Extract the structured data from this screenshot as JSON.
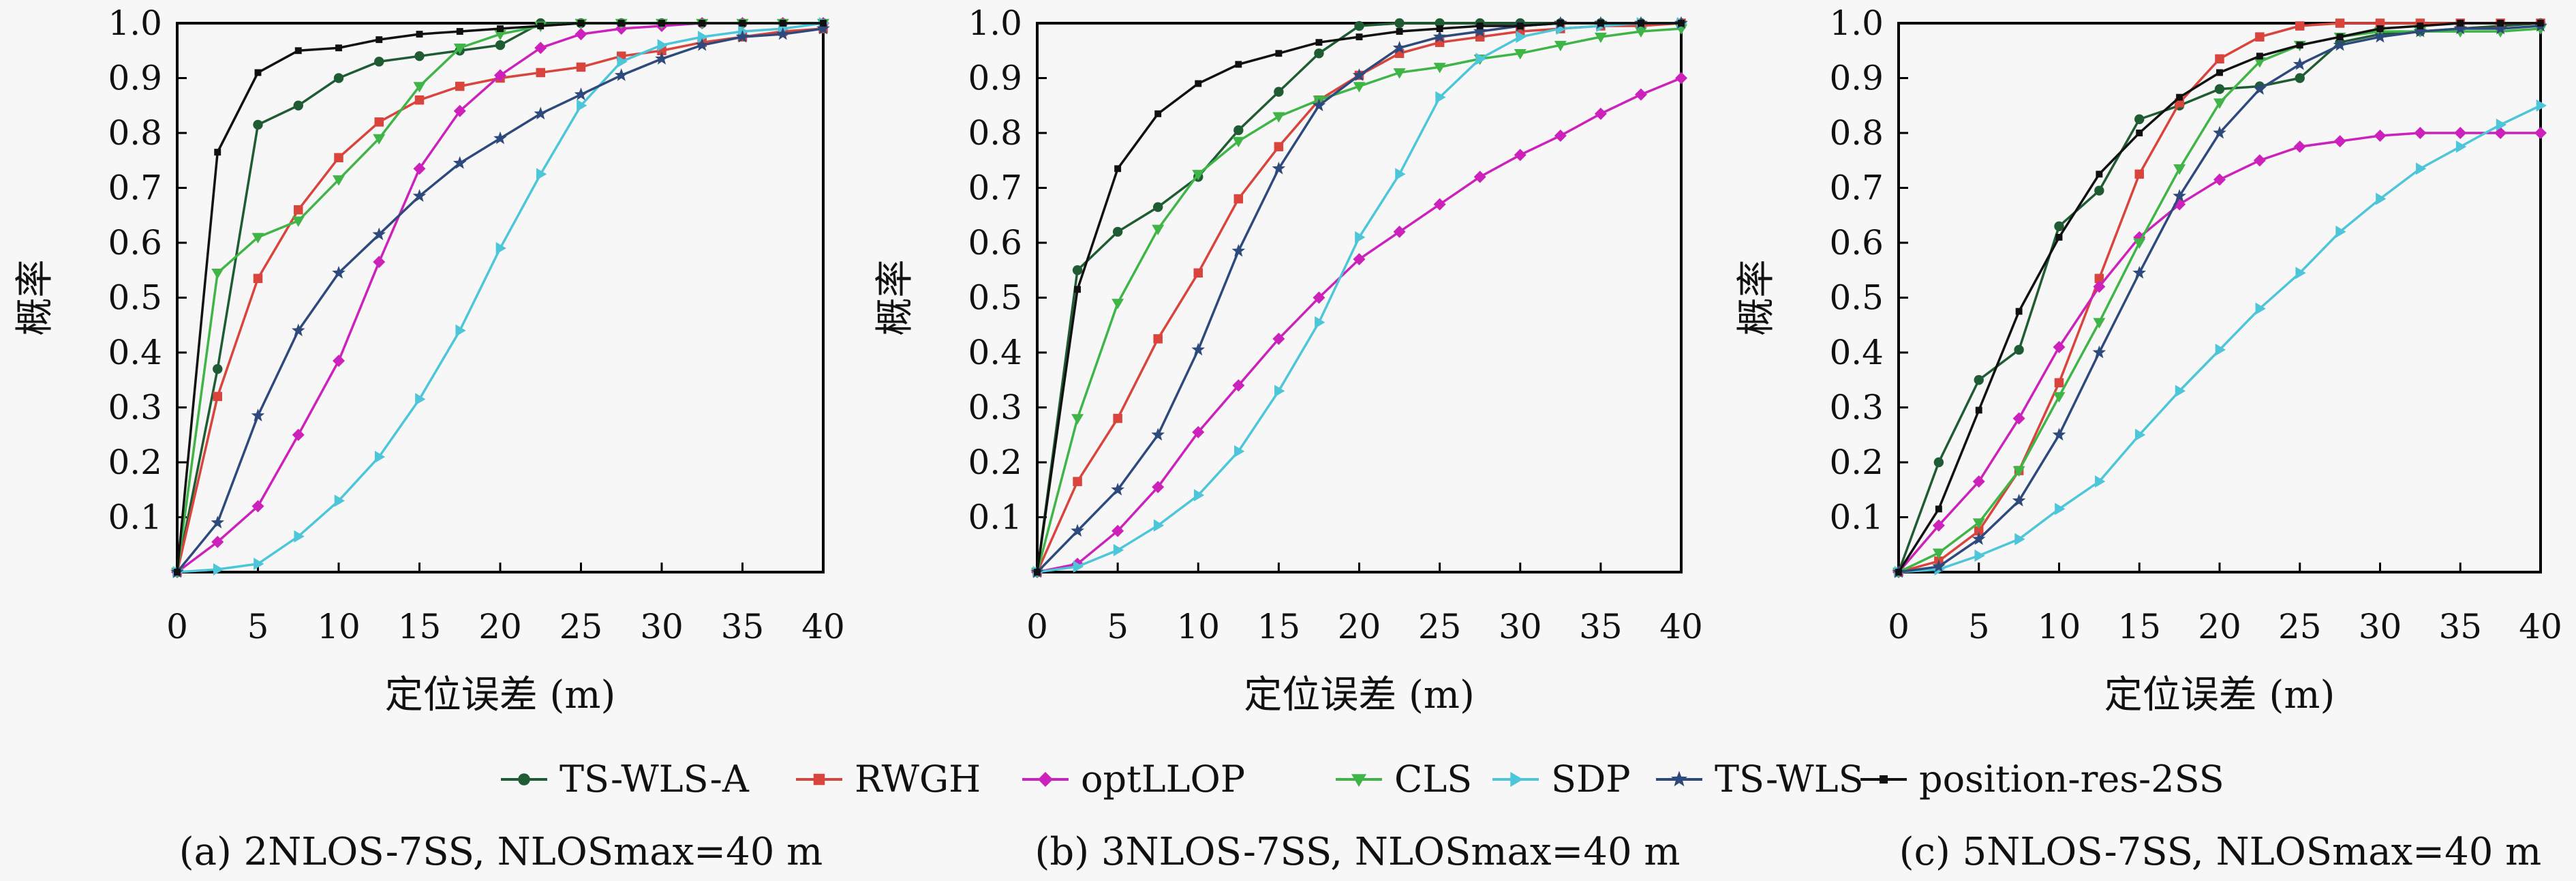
{
  "legend": [
    {
      "name": "TS-WLS-A",
      "color": "#1f5c33",
      "marker": "circle"
    },
    {
      "name": "RWGH",
      "color": "#d9443c",
      "marker": "square"
    },
    {
      "name": "optLLOP",
      "color": "#cc22bb",
      "marker": "diamond"
    },
    {
      "name": "CLS",
      "color": "#3fb548",
      "marker": "triangle-down"
    },
    {
      "name": "SDP",
      "color": "#4cc6d8",
      "marker": "triangle-right"
    },
    {
      "name": "TS-WLS",
      "color": "#2e4a7d",
      "marker": "star"
    },
    {
      "name": "position-res-2SS",
      "color": "#111111",
      "marker": "small-square"
    }
  ],
  "chart_data": [
    {
      "type": "line",
      "caption": "(a) 2NLOS-7SS, NLOSmax=40 m",
      "xlabel": "定位误差 (m)",
      "ylabel": "概率",
      "xlim": [
        0,
        40
      ],
      "ylim": [
        0,
        1.0
      ],
      "xticks": [
        "0",
        "5",
        "10",
        "15",
        "20",
        "25",
        "30",
        "35",
        "40"
      ],
      "yticks": [
        "0.1",
        "0.2",
        "0.3",
        "0.4",
        "0.5",
        "0.6",
        "0.7",
        "0.8",
        "0.9",
        "1.0"
      ],
      "x": [
        0,
        2.5,
        5,
        7.5,
        10,
        12.5,
        15,
        17.5,
        20,
        22.5,
        25,
        27.5,
        30,
        32.5,
        35,
        37.5,
        40
      ],
      "series": [
        {
          "name": "TS-WLS-A",
          "values": [
            0,
            0.37,
            0.815,
            0.85,
            0.9,
            0.93,
            0.94,
            0.95,
            0.96,
            1.0,
            1.0,
            1.0,
            1.0,
            1.0,
            1.0,
            1.0,
            1.0
          ]
        },
        {
          "name": "RWGH",
          "values": [
            0,
            0.32,
            0.535,
            0.66,
            0.755,
            0.82,
            0.86,
            0.885,
            0.9,
            0.91,
            0.92,
            0.94,
            0.95,
            0.965,
            0.975,
            0.985,
            0.99
          ]
        },
        {
          "name": "optLLOP",
          "values": [
            0,
            0.055,
            0.12,
            0.25,
            0.385,
            0.565,
            0.735,
            0.84,
            0.905,
            0.955,
            0.98,
            0.99,
            0.995,
            1.0,
            1.0,
            1.0,
            1.0
          ]
        },
        {
          "name": "CLS",
          "values": [
            0,
            0.545,
            0.61,
            0.64,
            0.715,
            0.79,
            0.885,
            0.955,
            0.98,
            0.995,
            1.0,
            1.0,
            1.0,
            1.0,
            1.0,
            1.0,
            1.0
          ]
        },
        {
          "name": "SDP",
          "values": [
            0,
            0.005,
            0.015,
            0.065,
            0.13,
            0.21,
            0.315,
            0.44,
            0.59,
            0.725,
            0.85,
            0.93,
            0.96,
            0.975,
            0.985,
            0.99,
            1.0
          ]
        },
        {
          "name": "TS-WLS",
          "values": [
            0,
            0.09,
            0.285,
            0.44,
            0.545,
            0.615,
            0.685,
            0.745,
            0.79,
            0.835,
            0.87,
            0.905,
            0.935,
            0.96,
            0.975,
            0.98,
            0.99
          ]
        },
        {
          "name": "position-res-2SS",
          "values": [
            0,
            0.765,
            0.91,
            0.95,
            0.955,
            0.97,
            0.98,
            0.985,
            0.99,
            0.995,
            1.0,
            1.0,
            1.0,
            1.0,
            1.0,
            1.0,
            1.0
          ]
        }
      ]
    },
    {
      "type": "line",
      "caption": "(b) 3NLOS-7SS, NLOSmax=40 m",
      "xlabel": "定位误差 (m)",
      "ylabel": "概率",
      "xlim": [
        0,
        40
      ],
      "ylim": [
        0,
        1.0
      ],
      "xticks": [
        "0",
        "5",
        "10",
        "15",
        "20",
        "25",
        "30",
        "35",
        "40"
      ],
      "yticks": [
        "0.1",
        "0.2",
        "0.3",
        "0.4",
        "0.5",
        "0.6",
        "0.7",
        "0.8",
        "0.9",
        "1.0"
      ],
      "x": [
        0,
        2.5,
        5,
        7.5,
        10,
        12.5,
        15,
        17.5,
        20,
        22.5,
        25,
        27.5,
        30,
        32.5,
        35,
        37.5,
        40
      ],
      "series": [
        {
          "name": "TS-WLS-A",
          "values": [
            0,
            0.55,
            0.62,
            0.665,
            0.72,
            0.805,
            0.875,
            0.945,
            0.995,
            1.0,
            1.0,
            1.0,
            1.0,
            1.0,
            1.0,
            1.0,
            1.0
          ]
        },
        {
          "name": "RWGH",
          "values": [
            0,
            0.165,
            0.28,
            0.425,
            0.545,
            0.68,
            0.775,
            0.86,
            0.905,
            0.945,
            0.965,
            0.975,
            0.985,
            0.99,
            0.995,
            0.995,
            1.0
          ]
        },
        {
          "name": "optLLOP",
          "values": [
            0,
            0.015,
            0.075,
            0.155,
            0.255,
            0.34,
            0.425,
            0.5,
            0.57,
            0.62,
            0.67,
            0.72,
            0.76,
            0.795,
            0.835,
            0.87,
            0.9
          ]
        },
        {
          "name": "CLS",
          "values": [
            0,
            0.28,
            0.49,
            0.625,
            0.725,
            0.785,
            0.83,
            0.86,
            0.885,
            0.91,
            0.92,
            0.935,
            0.945,
            0.96,
            0.975,
            0.985,
            0.99
          ]
        },
        {
          "name": "SDP",
          "values": [
            0,
            0.01,
            0.04,
            0.085,
            0.14,
            0.22,
            0.33,
            0.455,
            0.61,
            0.725,
            0.865,
            0.935,
            0.975,
            0.99,
            0.995,
            1.0,
            1.0
          ]
        },
        {
          "name": "TS-WLS",
          "values": [
            0,
            0.075,
            0.15,
            0.25,
            0.405,
            0.585,
            0.735,
            0.85,
            0.905,
            0.955,
            0.975,
            0.985,
            0.995,
            1.0,
            1.0,
            1.0,
            1.0
          ]
        },
        {
          "name": "position-res-2SS",
          "values": [
            0,
            0.515,
            0.735,
            0.835,
            0.89,
            0.925,
            0.945,
            0.965,
            0.975,
            0.985,
            0.99,
            0.995,
            0.995,
            1.0,
            1.0,
            1.0,
            1.0
          ]
        }
      ]
    },
    {
      "type": "line",
      "caption": "(c) 5NLOS-7SS, NLOSmax=40 m",
      "xlabel": "定位误差 (m)",
      "ylabel": "概率",
      "xlim": [
        0,
        40
      ],
      "ylim": [
        0,
        1.0
      ],
      "xticks": [
        "0",
        "5",
        "10",
        "15",
        "20",
        "25",
        "30",
        "35",
        "40"
      ],
      "yticks": [
        "0.1",
        "0.2",
        "0.3",
        "0.4",
        "0.5",
        "0.6",
        "0.7",
        "0.8",
        "0.9",
        "1.0"
      ],
      "x": [
        0,
        2.5,
        5,
        7.5,
        10,
        12.5,
        15,
        17.5,
        20,
        22.5,
        25,
        27.5,
        30,
        32.5,
        35,
        37.5,
        40
      ],
      "series": [
        {
          "name": "TS-WLS-A",
          "values": [
            0,
            0.2,
            0.35,
            0.405,
            0.63,
            0.695,
            0.825,
            0.85,
            0.88,
            0.885,
            0.9,
            0.965,
            0.98,
            0.985,
            0.99,
            0.995,
            1.0
          ]
        },
        {
          "name": "RWGH",
          "values": [
            0,
            0.02,
            0.075,
            0.185,
            0.345,
            0.535,
            0.725,
            0.855,
            0.935,
            0.975,
            0.995,
            1.0,
            1.0,
            1.0,
            1.0,
            1.0,
            1.0
          ]
        },
        {
          "name": "optLLOP",
          "values": [
            0,
            0.085,
            0.165,
            0.28,
            0.41,
            0.52,
            0.61,
            0.67,
            0.715,
            0.75,
            0.775,
            0.785,
            0.795,
            0.8,
            0.8,
            0.8,
            0.8
          ]
        },
        {
          "name": "CLS",
          "values": [
            0,
            0.035,
            0.09,
            0.185,
            0.32,
            0.455,
            0.6,
            0.735,
            0.855,
            0.93,
            0.96,
            0.975,
            0.985,
            0.985,
            0.985,
            0.985,
            0.99
          ]
        },
        {
          "name": "SDP",
          "values": [
            0,
            0.005,
            0.03,
            0.06,
            0.115,
            0.165,
            0.25,
            0.33,
            0.405,
            0.48,
            0.545,
            0.62,
            0.68,
            0.735,
            0.775,
            0.815,
            0.85
          ]
        },
        {
          "name": "TS-WLS",
          "values": [
            0,
            0.01,
            0.06,
            0.13,
            0.25,
            0.4,
            0.545,
            0.685,
            0.8,
            0.88,
            0.925,
            0.96,
            0.975,
            0.985,
            0.99,
            0.99,
            0.995
          ]
        },
        {
          "name": "position-res-2SS",
          "values": [
            0,
            0.115,
            0.295,
            0.475,
            0.61,
            0.725,
            0.8,
            0.865,
            0.91,
            0.94,
            0.96,
            0.975,
            0.99,
            0.995,
            1.0,
            1.0,
            1.0
          ]
        }
      ]
    }
  ]
}
